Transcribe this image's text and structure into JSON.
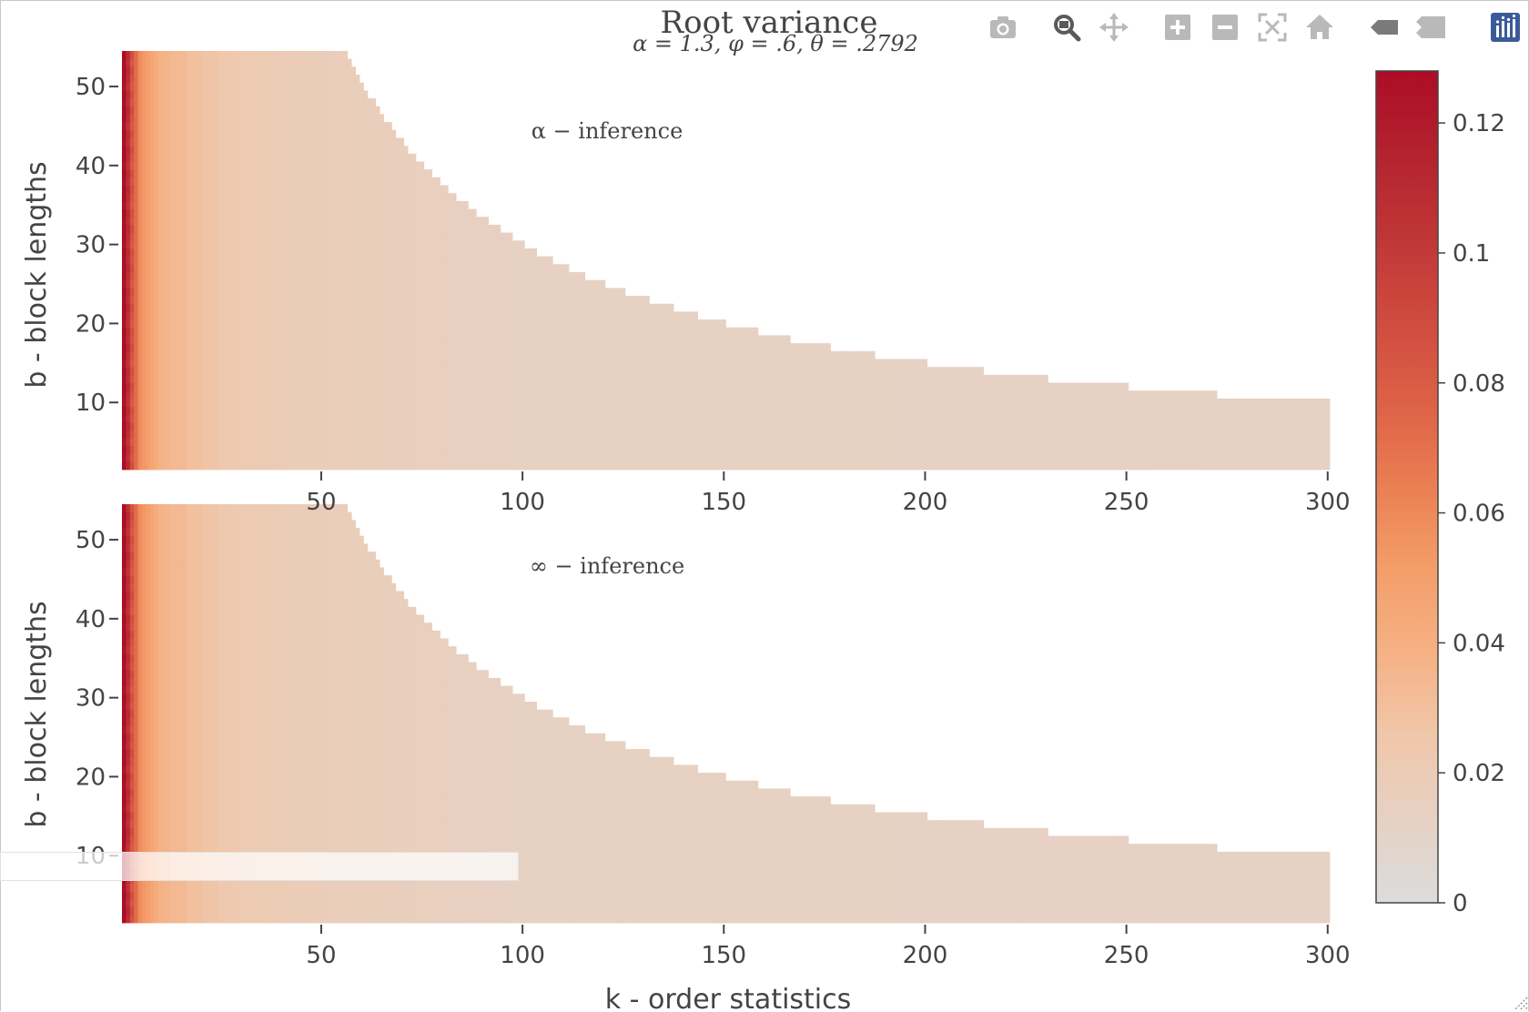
{
  "title": "Root variance",
  "subtitle": "α = 1.3, φ = .6, θ = .2792",
  "toolbar": {
    "buttons": [
      {
        "name": "download-plot-button",
        "icon": "camera-icon"
      },
      {
        "name": "zoom-button",
        "icon": "zoom-icon"
      },
      {
        "name": "pan-button",
        "icon": "pan-icon"
      },
      {
        "name": "zoom-in-button",
        "icon": "zoom-in-icon"
      },
      {
        "name": "zoom-out-button",
        "icon": "zoom-out-icon"
      },
      {
        "name": "autoscale-button",
        "icon": "autoscale-icon"
      },
      {
        "name": "reset-axes-button",
        "icon": "home-icon"
      },
      {
        "name": "spike-lines-button",
        "icon": "spike-icon"
      },
      {
        "name": "compare-hover-button",
        "icon": "compare-icon"
      },
      {
        "name": "plotly-logo-button",
        "icon": "plotly-logo-icon"
      }
    ]
  },
  "chart_data": {
    "type": "heatmap",
    "x_title": "k - order statistics",
    "y_title": "b - block lengths",
    "x_ticks": [
      50,
      100,
      150,
      200,
      250,
      300
    ],
    "y_ticks": [
      10,
      20,
      30,
      40,
      50
    ],
    "x_range": [
      0.5,
      300.5
    ],
    "y_range": [
      1.5,
      54.5
    ],
    "colorscale": {
      "stops": [
        [
          0.0,
          "#dcdcdc"
        ],
        [
          0.1,
          "#e6d1c3"
        ],
        [
          0.2,
          "#f0c7aa"
        ],
        [
          0.3,
          "#f5b184"
        ],
        [
          0.4,
          "#f49e6a"
        ],
        [
          0.5,
          "#ea7f53"
        ],
        [
          0.6,
          "#dd6146"
        ],
        [
          0.7,
          "#cf4b3f"
        ],
        [
          0.8,
          "#c03637"
        ],
        [
          0.9,
          "#b3232e"
        ],
        [
          1.0,
          "#ad0c26"
        ]
      ],
      "zmin": 0,
      "zmax": 0.128,
      "ticks": [
        0,
        0.02,
        0.04,
        0.06,
        0.08,
        0.1,
        0.12
      ],
      "tick_labels": [
        "0",
        "0.02",
        "0.04",
        "0.06",
        "0.08",
        "0.1",
        "0.12"
      ]
    },
    "max_k_by_b": [
      [
        10,
        300
      ],
      [
        11,
        272
      ],
      [
        12,
        250
      ],
      [
        13,
        230
      ],
      [
        14,
        214
      ],
      [
        15,
        200
      ],
      [
        16,
        187
      ],
      [
        17,
        176
      ],
      [
        18,
        166
      ],
      [
        19,
        158
      ],
      [
        20,
        150
      ],
      [
        21,
        143
      ],
      [
        22,
        137
      ],
      [
        23,
        131
      ],
      [
        24,
        125
      ],
      [
        25,
        120
      ],
      [
        26,
        115
      ],
      [
        27,
        111
      ],
      [
        28,
        107
      ],
      [
        29,
        103
      ],
      [
        30,
        100
      ],
      [
        31,
        97
      ],
      [
        32,
        94
      ],
      [
        33,
        91
      ],
      [
        34,
        88
      ],
      [
        35,
        86
      ],
      [
        36,
        83
      ],
      [
        37,
        81
      ],
      [
        38,
        79
      ],
      [
        39,
        77
      ],
      [
        40,
        75
      ],
      [
        41,
        73
      ],
      [
        42,
        71
      ],
      [
        43,
        70
      ],
      [
        44,
        68
      ],
      [
        45,
        67
      ],
      [
        46,
        65
      ],
      [
        47,
        64
      ],
      [
        48,
        63
      ],
      [
        49,
        61
      ],
      [
        50,
        60
      ],
      [
        51,
        59
      ],
      [
        52,
        58
      ],
      [
        53,
        57
      ],
      [
        54,
        56
      ]
    ],
    "value_profile": {
      "description_k": [
        1,
        2,
        3,
        5,
        10,
        20,
        30,
        50,
        100,
        300
      ],
      "values": [
        0.128,
        0.108,
        0.085,
        0.058,
        0.038,
        0.028,
        0.022,
        0.018,
        0.013,
        0.012
      ]
    },
    "panels": [
      {
        "annotation": "α − inference"
      },
      {
        "annotation": "∞ − inference"
      }
    ]
  }
}
